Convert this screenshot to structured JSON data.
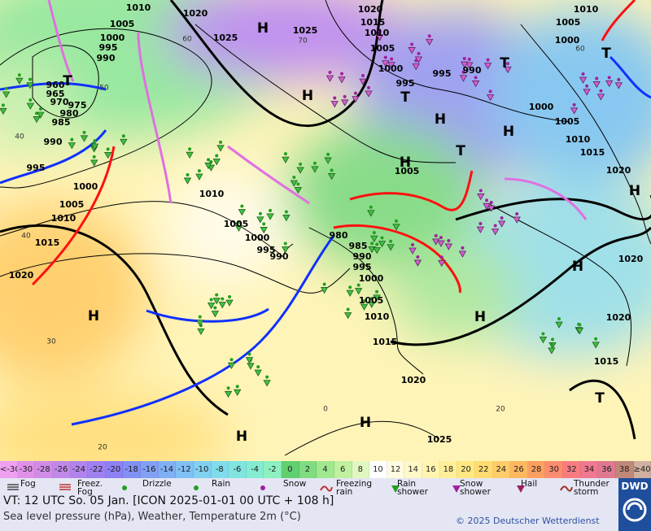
{
  "map": {
    "isobar_labels": [
      1010,
      1020,
      1005,
      1000,
      995,
      990,
      960,
      965,
      970,
      975,
      980,
      985,
      990,
      995,
      1000,
      1005,
      1010,
      1015,
      1020,
      1010,
      1005,
      1000,
      995,
      990,
      1025,
      1025,
      1020,
      1015,
      1010,
      1005,
      1000,
      995,
      995,
      990,
      1010,
      1005,
      1000,
      1000,
      1005,
      1010,
      1015,
      1020,
      1020,
      1020,
      1015,
      1005,
      980,
      985,
      990,
      995,
      1000,
      1005,
      1010,
      1015,
      1020,
      1025
    ],
    "pressure_centers": [
      "H",
      "T",
      "H",
      "T",
      "H",
      "T",
      "T",
      "H",
      "T",
      "H",
      "H",
      "H",
      "H",
      "H",
      "H",
      "H",
      "T"
    ],
    "graticule_labels": [
      "60",
      "70",
      "50",
      "40",
      "40",
      "30",
      "20",
      "0",
      "60",
      "20"
    ]
  },
  "colorbar": {
    "labels": [
      "<-30",
      -30,
      -28,
      -26,
      -24,
      -22,
      -20,
      -18,
      -16,
      -14,
      -12,
      -10,
      -8,
      -6,
      -4,
      -2,
      0,
      2,
      4,
      6,
      8,
      10,
      12,
      14,
      16,
      18,
      20,
      22,
      24,
      26,
      28,
      30,
      32,
      34,
      36,
      38,
      "≥40"
    ],
    "colors": [
      "#f0a0f0",
      "#e090e8",
      "#d08ce8",
      "#c088e8",
      "#b084ec",
      "#a080f0",
      "#8c80f4",
      "#8090f4",
      "#80a0f4",
      "#80b0f4",
      "#80c0f4",
      "#80d0f0",
      "#80dcec",
      "#80e4e0",
      "#84ecd0",
      "#8cf0c0",
      "#60d070",
      "#80dc80",
      "#a0e890",
      "#c0f0a0",
      "#e0f8c0",
      "#ffffff",
      "#fffbe0",
      "#fff8c8",
      "#fff4b0",
      "#ffef98",
      "#ffe880",
      "#ffdc70",
      "#ffcc68",
      "#ffb860",
      "#ffa060",
      "#ff8c70",
      "#f87c80",
      "#f07890",
      "#e07890",
      "#c08878",
      "#d0b0a0"
    ]
  },
  "legend": {
    "items": [
      "Fog",
      "Freez. Fog",
      "Drizzle",
      "Rain",
      "Snow",
      "Freezing rain",
      "Rain shower",
      "Snow shower",
      "Hail",
      "Thunder storm"
    ]
  },
  "footer": {
    "valid_time": "VT: 12 UTC So.  05 Jan. [ICON 2025-01-01  00 UTC + 108 h]",
    "description": "Sea level pressure (hPa), Weather, Temperature 2m (°C)",
    "copyright": "© 2025 Deutscher Wetterdienst",
    "logo": "DWD"
  }
}
